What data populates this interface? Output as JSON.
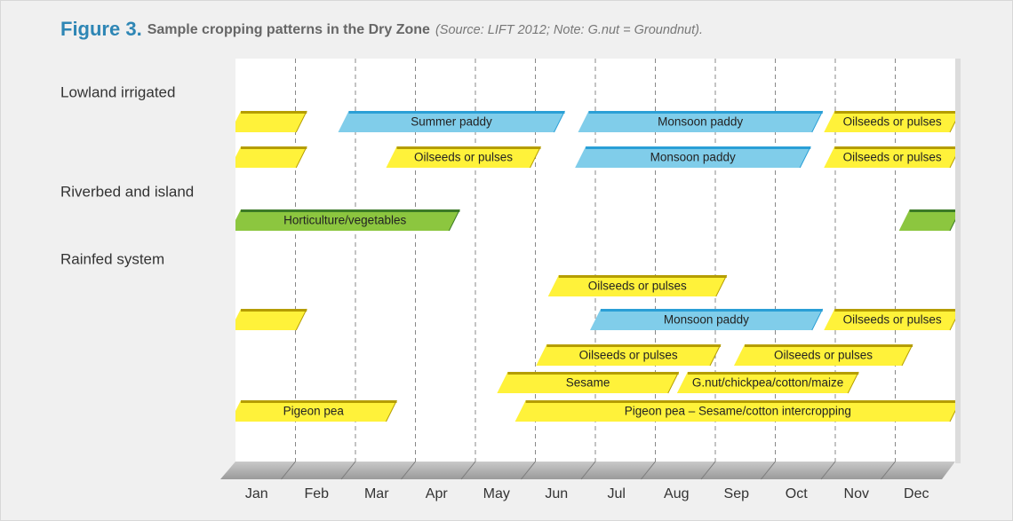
{
  "chart_data": {
    "type": "gantt",
    "title": "Figure 3.",
    "subtitle": "Sample cropping patterns in the Dry Zone",
    "note": "(Source: LIFT 2012; Note: G.nut = Groundnut).",
    "categories": [
      "Jan",
      "Feb",
      "Mar",
      "Apr",
      "May",
      "Jun",
      "Jul",
      "Aug",
      "Sep",
      "Oct",
      "Nov",
      "Dec"
    ],
    "xlim": [
      0,
      12
    ],
    "xticks": [
      1,
      2,
      3,
      4,
      5,
      6,
      7,
      8,
      9,
      10,
      11
    ],
    "grid": true,
    "groups": [
      {
        "name": "Lowland irrigated",
        "rows": [
          [
            {
              "start": 0,
              "end": 1.1,
              "color": "#fff23a",
              "edge": "#b59d00"
            },
            {
              "label": "Summer paddy",
              "start": 1.8,
              "end": 5.4,
              "color": "#80cdea",
              "edge": "#2a9fd6"
            },
            {
              "label": "Monsoon paddy",
              "start": 5.8,
              "end": 9.7,
              "color": "#80cdea",
              "edge": "#2a9fd6"
            },
            {
              "label": "Oilseeds or pulses",
              "start": 9.9,
              "end": 12,
              "color": "#fff23a",
              "edge": "#b59d00"
            }
          ],
          [
            {
              "start": 0,
              "end": 1.1,
              "color": "#fff23a",
              "edge": "#b59d00"
            },
            {
              "label": "Oilseeds or pulses",
              "start": 2.6,
              "end": 5.0,
              "color": "#fff23a",
              "edge": "#b59d00"
            },
            {
              "label": "Monsoon paddy",
              "start": 5.75,
              "end": 9.5,
              "color": "#80cdea",
              "edge": "#2a9fd6"
            },
            {
              "label": "Oilseeds or pulses",
              "start": 9.9,
              "end": 12,
              "color": "#fff23a",
              "edge": "#b59d00"
            }
          ]
        ]
      },
      {
        "name": "Riverbed and island",
        "rows": [
          [
            {
              "label": "Horticulture/vegetables",
              "start": 0,
              "end": 3.65,
              "color": "#8cc63f",
              "edge": "#3b7a26"
            },
            {
              "start": 11.15,
              "end": 12,
              "color": "#8cc63f",
              "edge": "#3b7a26"
            }
          ]
        ]
      },
      {
        "name": "Rainfed system",
        "rows": [
          [
            {
              "label": "Oilseeds or pulses",
              "start": 5.3,
              "end": 8.1,
              "color": "#fff23a",
              "edge": "#b59d00"
            }
          ],
          [
            {
              "start": 0,
              "end": 1.1,
              "color": "#fff23a",
              "edge": "#b59d00"
            },
            {
              "label": "Monsoon paddy",
              "start": 6.0,
              "end": 9.7,
              "color": "#80cdea",
              "edge": "#2a9fd6"
            },
            {
              "label": "Oilseeds or pulses",
              "start": 9.9,
              "end": 12,
              "color": "#fff23a",
              "edge": "#b59d00"
            }
          ],
          [
            {
              "label": "Oilseeds or pulses",
              "start": 5.1,
              "end": 8.0,
              "color": "#fff23a",
              "edge": "#b59d00"
            },
            {
              "label": "Oilseeds or pulses",
              "start": 8.4,
              "end": 11.2,
              "color": "#fff23a",
              "edge": "#b59d00"
            }
          ],
          [
            {
              "label": "Sesame",
              "start": 4.45,
              "end": 7.3,
              "color": "#fff23a",
              "edge": "#b59d00"
            },
            {
              "label": "G.nut/chickpea/cotton/maize",
              "start": 7.45,
              "end": 10.3,
              "color": "#fff23a",
              "edge": "#b59d00"
            }
          ],
          [
            {
              "label": "Pigeon pea",
              "start": 0,
              "end": 2.6,
              "color": "#fff23a",
              "edge": "#b59d00"
            },
            {
              "label": "Pigeon pea – Sesame/cotton intercropping",
              "start": 4.75,
              "end": 12,
              "color": "#fff23a",
              "edge": "#b59d00"
            }
          ]
        ]
      }
    ]
  }
}
